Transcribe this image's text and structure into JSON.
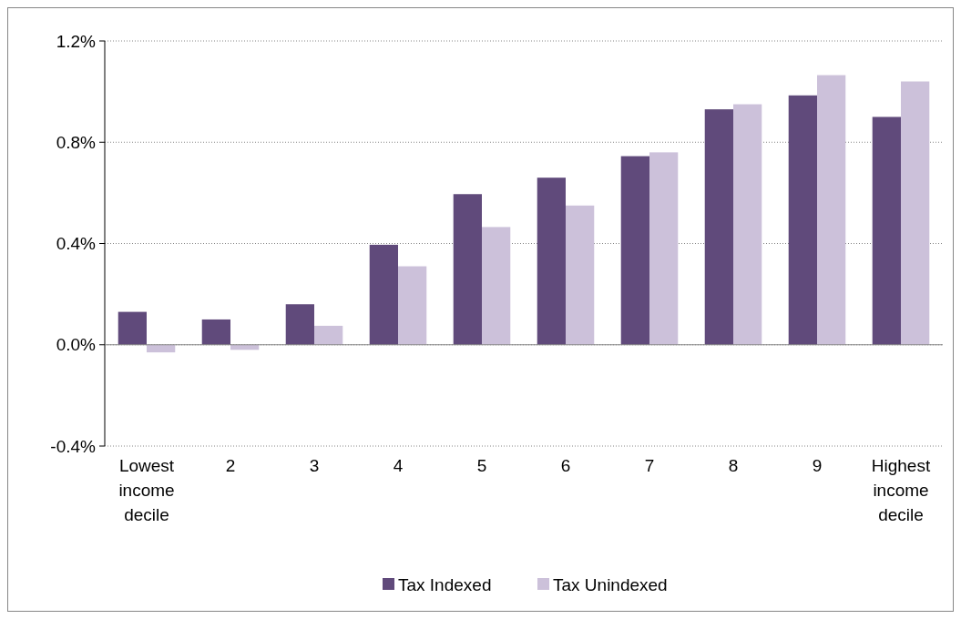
{
  "chart_data": {
    "type": "bar",
    "categories": [
      "Lowest income decile",
      "2",
      "3",
      "4",
      "5",
      "6",
      "7",
      "8",
      "9",
      "Highest income decile"
    ],
    "series": [
      {
        "name": "Tax Indexed",
        "color": "#604a7b",
        "values": [
          0.13,
          0.1,
          0.16,
          0.395,
          0.595,
          0.66,
          0.745,
          0.93,
          0.985,
          0.9
        ]
      },
      {
        "name": "Tax Unindexed",
        "color": "#ccc1da",
        "values": [
          -0.03,
          -0.02,
          0.075,
          0.31,
          0.465,
          0.55,
          0.76,
          0.95,
          1.065,
          1.04
        ]
      }
    ],
    "ylim": [
      -0.4,
      1.2
    ],
    "yticks": [
      {
        "value": -0.4,
        "label": "-0.4%"
      },
      {
        "value": 0,
        "label": "0.0%"
      },
      {
        "value": 0.4,
        "label": "0.4%"
      },
      {
        "value": 0.8,
        "label": "0.8%"
      },
      {
        "value": 1.2,
        "label": "1.2%"
      }
    ],
    "grid": "y",
    "legend": "bottom"
  }
}
